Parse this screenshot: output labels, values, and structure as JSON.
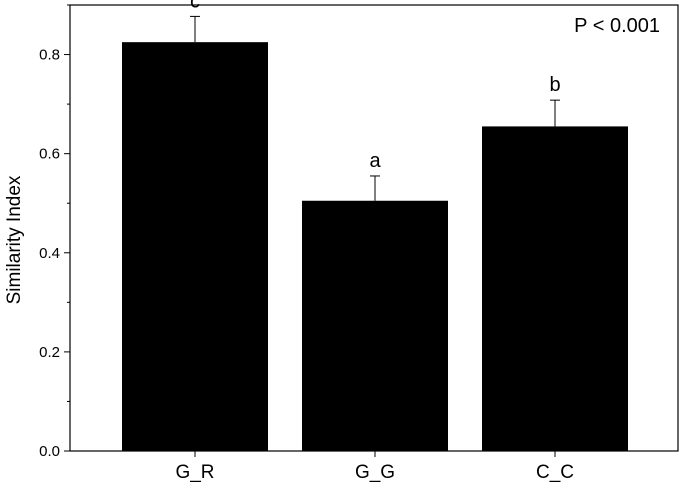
{
  "chart_data": {
    "type": "bar",
    "categories": [
      "G_R",
      "G_G",
      "C_C"
    ],
    "values": [
      0.825,
      0.505,
      0.655
    ],
    "error_upper": [
      0.877,
      0.555,
      0.708
    ],
    "significance_letters": [
      "c",
      "a",
      "b"
    ],
    "annotation": "P < 0.001",
    "title": "",
    "xlabel": "",
    "ylabel": "Similarity Index",
    "ylim": [
      0,
      0.9
    ],
    "yticks": [
      0.0,
      0.2,
      0.4,
      0.6,
      0.8
    ],
    "ytick_labels": [
      "0.0",
      "0.2",
      "0.4",
      "0.6",
      "0.8"
    ],
    "grid": false,
    "bar_color": "#000000"
  }
}
